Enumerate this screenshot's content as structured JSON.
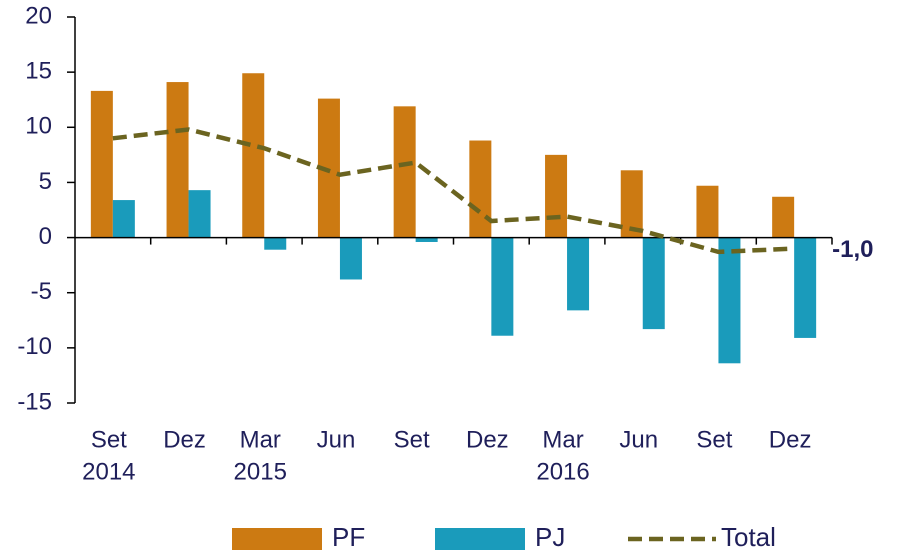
{
  "chart_data": {
    "type": "bar-line",
    "categories": [
      [
        "Set",
        "2014"
      ],
      [
        "Dez"
      ],
      [
        "Mar",
        "2015"
      ],
      [
        "Jun"
      ],
      [
        "Set"
      ],
      [
        "Dez"
      ],
      [
        "Mar",
        "2016"
      ],
      [
        "Jun"
      ],
      [
        "Set"
      ],
      [
        "Dez"
      ]
    ],
    "series": [
      {
        "name": "PF",
        "type": "bar",
        "color": "#cc7a12",
        "values": [
          13.3,
          14.1,
          14.9,
          12.6,
          11.9,
          8.8,
          7.5,
          6.1,
          4.7,
          3.7
        ]
      },
      {
        "name": "PJ",
        "type": "bar",
        "color": "#1a9bbb",
        "values": [
          3.4,
          4.3,
          -1.1,
          -3.8,
          -0.4,
          -8.9,
          -6.6,
          -8.3,
          -11.4,
          -9.1
        ]
      },
      {
        "name": "Total",
        "type": "line",
        "color": "#6b6420",
        "values": [
          9.0,
          9.8,
          8.1,
          5.7,
          6.8,
          1.5,
          1.9,
          0.6,
          -1.3,
          -1.0
        ],
        "value_labels": [
          null,
          null,
          null,
          null,
          null,
          null,
          null,
          null,
          null,
          "-1,0"
        ]
      }
    ],
    "ylim": [
      -15,
      20
    ],
    "yticks": [
      -15,
      -10,
      -5,
      0,
      5,
      10,
      15,
      20
    ]
  }
}
